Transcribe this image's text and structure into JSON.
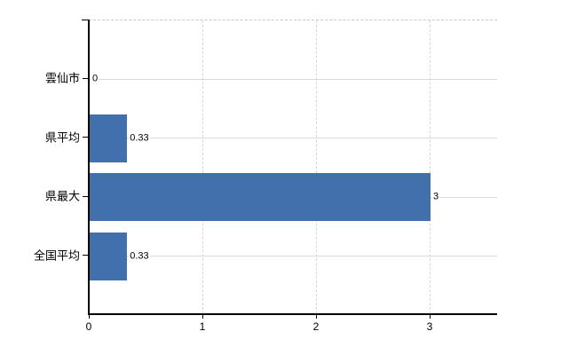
{
  "chart_data": {
    "type": "bar",
    "orientation": "horizontal",
    "title": "",
    "categories": [
      "雲仙市",
      "県平均",
      "県最大",
      "全国平均"
    ],
    "values": [
      0,
      0.33,
      3,
      0.33
    ],
    "value_labels": [
      "0",
      "0.33",
      "3",
      "0.33"
    ],
    "x_tick_labels": [
      "0",
      "1",
      "2",
      "3"
    ],
    "x_ticks": [
      0,
      1,
      2,
      3
    ],
    "xlim": [
      0,
      3.6
    ],
    "grid": true,
    "legend": "none",
    "bar_color": "#4170ad",
    "gridline_color": "#d6dcd6",
    "axis_color": "#000000",
    "text_color": "#000000"
  }
}
